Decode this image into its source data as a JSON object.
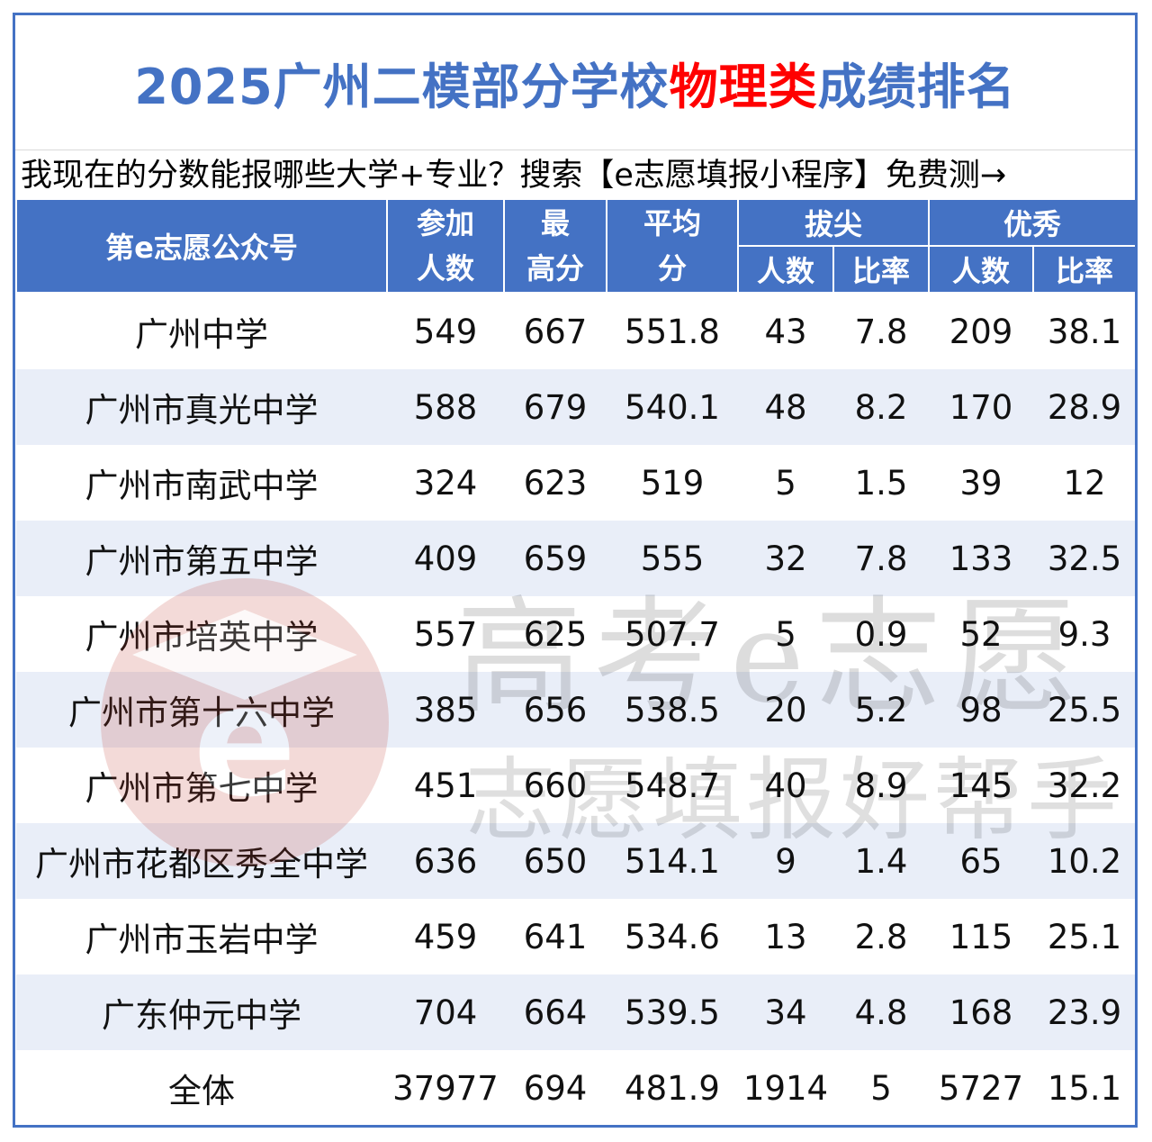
{
  "title": {
    "part1": "2025广州二模部分学校",
    "highlight": "物理类",
    "part2": "成绩排名",
    "highlight_color": "#ff0000",
    "title_color": "#4472c4"
  },
  "promo": "我现在的分数能报哪些大学+专业？搜索【e志愿填报小程序】免费测→",
  "header": {
    "name_col": "第e志愿公众号",
    "participants": [
      "参加",
      "人数"
    ],
    "max_score": [
      "最",
      "高分"
    ],
    "avg_score": [
      "平均",
      "分"
    ],
    "top_group": "拔尖",
    "top_count": "人数",
    "top_rate": "比率",
    "excellent_group": "优秀",
    "excellent_count": "人数",
    "excellent_rate": "比率",
    "header_color": "#4472c4"
  },
  "rows": [
    {
      "name": "广州中学",
      "participants": "549",
      "max": "667",
      "avg": "551.8",
      "top_n": "43",
      "top_r": "7.8",
      "exc_n": "209",
      "exc_r": "38.1"
    },
    {
      "name": "广州市真光中学",
      "participants": "588",
      "max": "679",
      "avg": "540.1",
      "top_n": "48",
      "top_r": "8.2",
      "exc_n": "170",
      "exc_r": "28.9"
    },
    {
      "name": "广州市南武中学",
      "participants": "324",
      "max": "623",
      "avg": "519",
      "top_n": "5",
      "top_r": "1.5",
      "exc_n": "39",
      "exc_r": "12"
    },
    {
      "name": "广州市第五中学",
      "participants": "409",
      "max": "659",
      "avg": "555",
      "top_n": "32",
      "top_r": "7.8",
      "exc_n": "133",
      "exc_r": "32.5"
    },
    {
      "name": "广州市培英中学",
      "participants": "557",
      "max": "625",
      "avg": "507.7",
      "top_n": "5",
      "top_r": "0.9",
      "exc_n": "52",
      "exc_r": "9.3"
    },
    {
      "name": "广州市第十六中学",
      "participants": "385",
      "max": "656",
      "avg": "538.5",
      "top_n": "20",
      "top_r": "5.2",
      "exc_n": "98",
      "exc_r": "25.5"
    },
    {
      "name": "广州市第七中学",
      "participants": "451",
      "max": "660",
      "avg": "548.7",
      "top_n": "40",
      "top_r": "8.9",
      "exc_n": "145",
      "exc_r": "32.2"
    },
    {
      "name": "广州市花都区秀全中学",
      "participants": "636",
      "max": "650",
      "avg": "514.1",
      "top_n": "9",
      "top_r": "1.4",
      "exc_n": "65",
      "exc_r": "10.2"
    },
    {
      "name": "广州市玉岩中学",
      "participants": "459",
      "max": "641",
      "avg": "534.6",
      "top_n": "13",
      "top_r": "2.8",
      "exc_n": "115",
      "exc_r": "25.1"
    },
    {
      "name": "广东仲元中学",
      "participants": "704",
      "max": "664",
      "avg": "539.5",
      "top_n": "34",
      "top_r": "4.8",
      "exc_n": "168",
      "exc_r": "23.9"
    },
    {
      "name": "全体",
      "participants": "37977",
      "max": "694",
      "avg": "481.9",
      "top_n": "1914",
      "top_r": "5",
      "exc_n": "5727",
      "exc_r": "15.1"
    }
  ],
  "watermark": {
    "line1": "高考e志愿",
    "line2": "志愿填报好帮手",
    "logo_letter": "e",
    "logo_color": "#c0392b",
    "logo_icon": "graduation-cap-icon"
  }
}
